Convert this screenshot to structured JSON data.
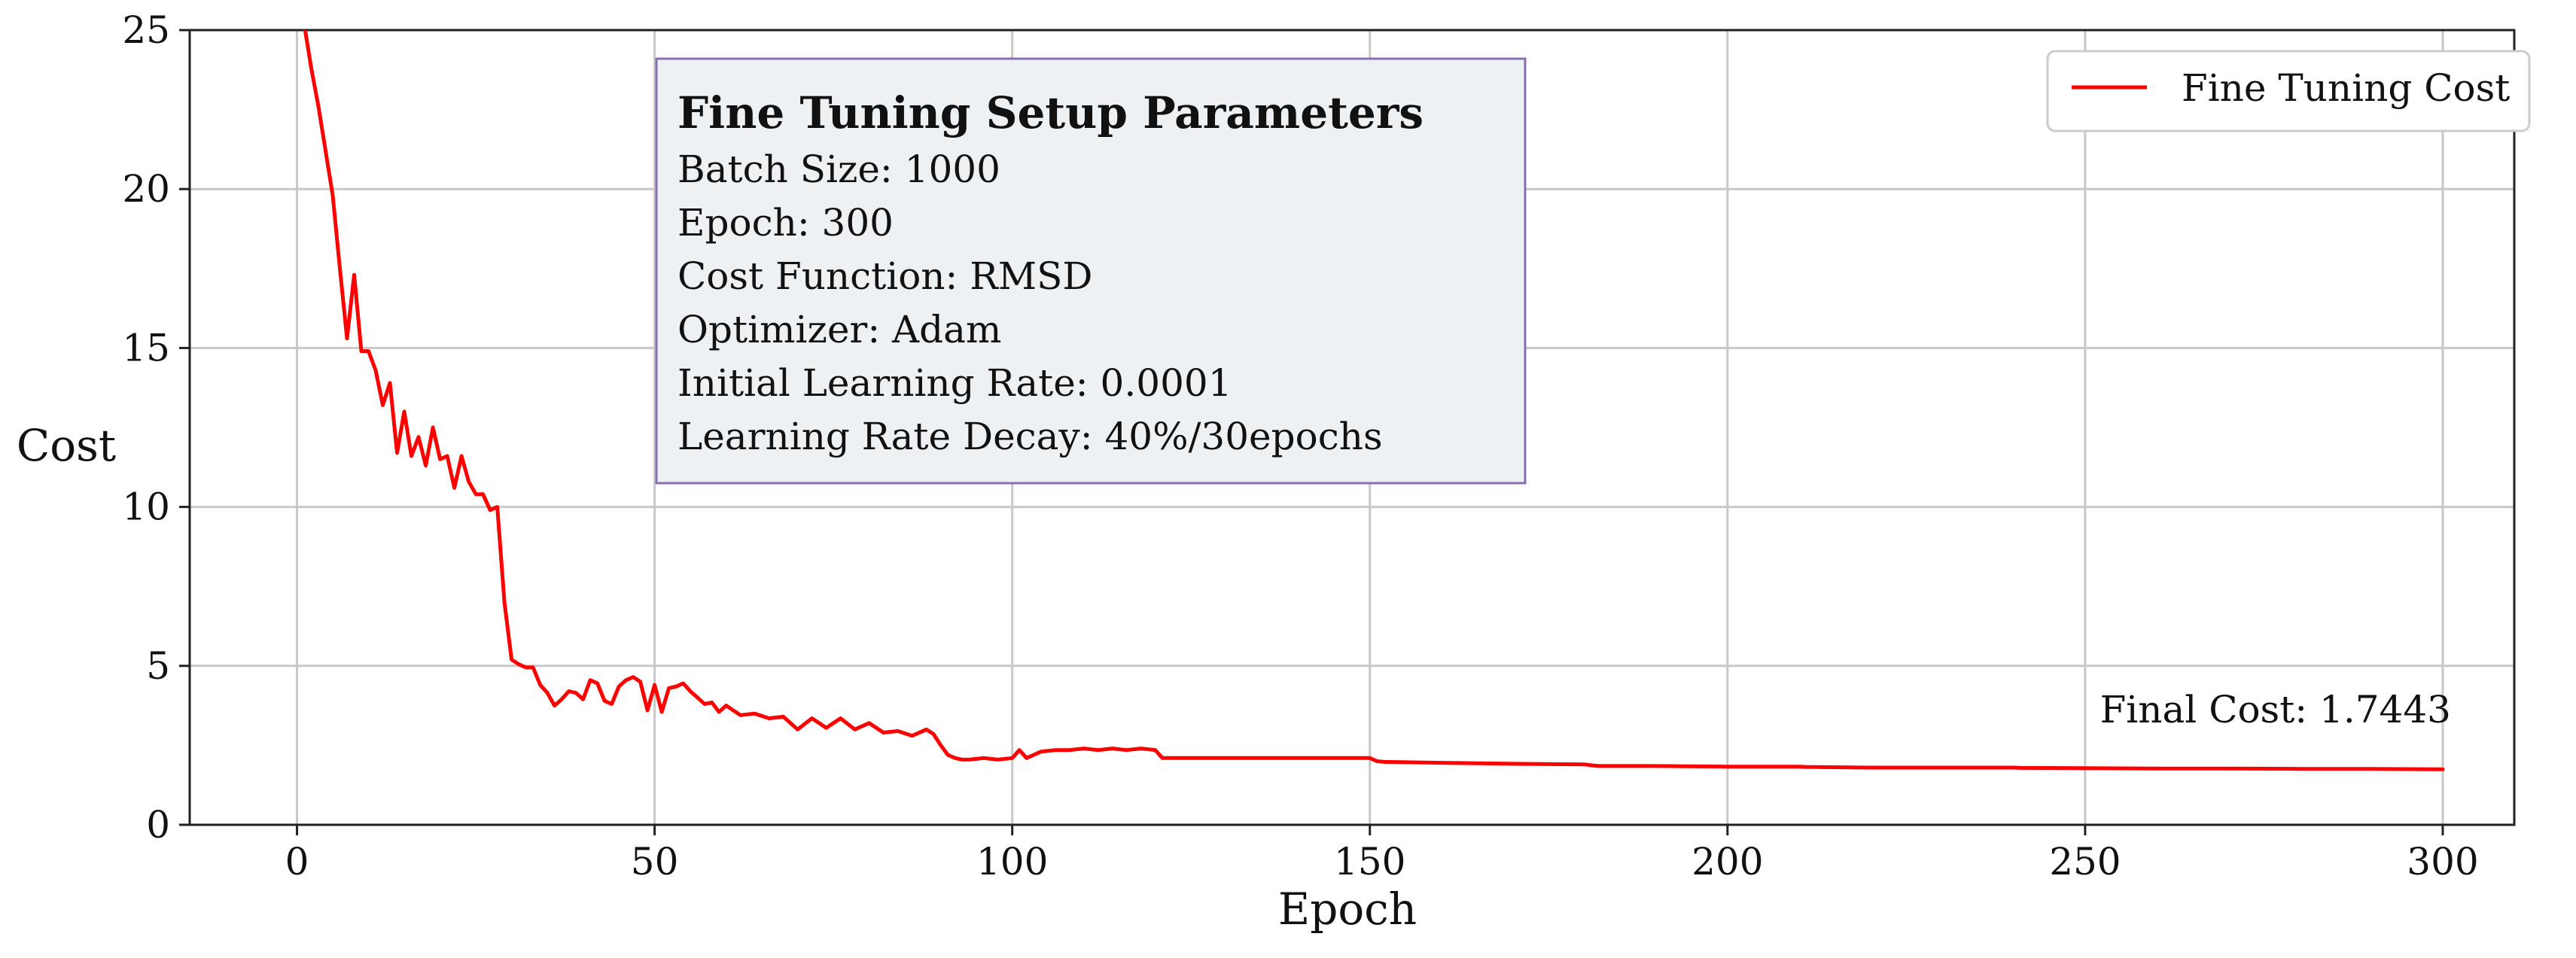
{
  "chart_data": {
    "type": "line",
    "title": "",
    "xlabel": "Epoch",
    "ylabel": "Cost",
    "xlim": [
      -15,
      310
    ],
    "ylim": [
      0,
      25
    ],
    "xticks": [
      0,
      50,
      100,
      150,
      200,
      250,
      300
    ],
    "yticks": [
      0,
      5,
      10,
      15,
      20,
      25
    ],
    "grid": true,
    "legend_position": "top-right",
    "series": [
      {
        "name": "Fine Tuning Cost",
        "color": "#ff0000",
        "x": [
          1,
          2,
          3,
          4,
          5,
          6,
          7,
          8,
          9,
          10,
          11,
          12,
          13,
          14,
          15,
          16,
          17,
          18,
          19,
          20,
          21,
          22,
          23,
          24,
          25,
          26,
          27,
          28,
          29,
          30,
          31,
          32,
          33,
          34,
          35,
          36,
          37,
          38,
          39,
          40,
          41,
          42,
          43,
          44,
          45,
          46,
          47,
          48,
          49,
          50,
          51,
          52,
          53,
          54,
          55,
          56,
          57,
          58,
          59,
          60,
          62,
          64,
          66,
          68,
          70,
          72,
          74,
          76,
          78,
          80,
          82,
          84,
          86,
          88,
          89,
          90,
          91,
          92,
          93,
          94,
          96,
          98,
          100,
          101,
          102,
          103,
          104,
          106,
          108,
          110,
          112,
          114,
          116,
          118,
          120,
          121,
          122,
          125,
          130,
          140,
          150,
          151,
          152,
          160,
          170,
          180,
          181,
          182,
          190,
          200,
          210,
          211,
          220,
          230,
          240,
          241,
          250,
          260,
          270,
          280,
          290,
          300
        ],
        "y": [
          25.2,
          23.8,
          22.6,
          21.2,
          19.8,
          17.5,
          15.3,
          17.3,
          14.9,
          14.9,
          14.3,
          13.2,
          13.9,
          11.7,
          13.0,
          11.6,
          12.2,
          11.3,
          12.5,
          11.5,
          11.6,
          10.6,
          11.6,
          10.8,
          10.4,
          10.4,
          9.9,
          10.0,
          7.0,
          5.2,
          5.05,
          4.95,
          4.95,
          4.4,
          4.15,
          3.75,
          3.95,
          4.2,
          4.15,
          3.95,
          4.55,
          4.45,
          3.9,
          3.8,
          4.35,
          4.55,
          4.65,
          4.5,
          3.6,
          4.4,
          3.55,
          4.3,
          4.35,
          4.45,
          4.2,
          4.0,
          3.8,
          3.85,
          3.55,
          3.75,
          3.45,
          3.5,
          3.35,
          3.4,
          3.0,
          3.35,
          3.05,
          3.35,
          3.0,
          3.2,
          2.9,
          2.95,
          2.8,
          3.0,
          2.85,
          2.5,
          2.2,
          2.1,
          2.05,
          2.05,
          2.1,
          2.05,
          2.1,
          2.35,
          2.1,
          2.2,
          2.3,
          2.35,
          2.35,
          2.4,
          2.35,
          2.4,
          2.35,
          2.4,
          2.35,
          2.1,
          2.1,
          2.1,
          2.1,
          2.1,
          2.1,
          2.0,
          1.98,
          1.95,
          1.92,
          1.9,
          1.87,
          1.85,
          1.85,
          1.83,
          1.83,
          1.82,
          1.8,
          1.8,
          1.8,
          1.79,
          1.78,
          1.77,
          1.77,
          1.76,
          1.76,
          1.745
        ]
      }
    ],
    "parameters_box": {
      "title": "Fine Tuning Setup Parameters",
      "lines": [
        "Batch Size: 1000",
        "Epoch: 300",
        "Cost Function: RMSD",
        "Optimizer: Adam",
        "Initial Learning Rate: 0.0001",
        "Learning Rate Decay: 40%/30epochs"
      ]
    },
    "annotation": "Final Cost: 1.7443"
  }
}
